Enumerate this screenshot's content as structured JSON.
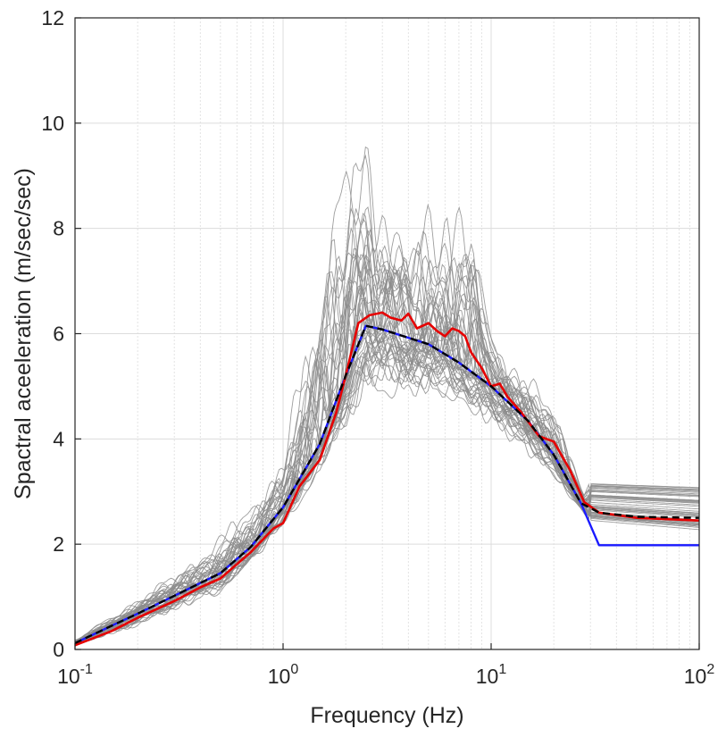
{
  "chart_data": {
    "type": "line",
    "title": "",
    "xlabel": "Frequency (Hz)",
    "ylabel": "Spactral aceeleration (m/sec/sec)",
    "x_scale": "log",
    "xlim": [
      0.1,
      100
    ],
    "ylim": [
      0,
      12
    ],
    "x_ticks": [
      {
        "base": "10",
        "exp": "-1",
        "value": 0.1
      },
      {
        "base": "10",
        "exp": "0",
        "value": 1
      },
      {
        "base": "10",
        "exp": "1",
        "value": 10
      },
      {
        "base": "10",
        "exp": "2",
        "value": 100
      }
    ],
    "y_ticks": [
      "0",
      "2",
      "4",
      "6",
      "8",
      "10",
      "12"
    ],
    "grid": true,
    "colors": {
      "individual": "#8c8c8c",
      "mean": "#e60000",
      "target": "#1a1aff",
      "dashed": "#000000",
      "grid": "#dcdcdc",
      "axis": "#262626"
    },
    "series": [
      {
        "style": "blue-solid",
        "x": [
          0.1,
          0.15,
          0.2,
          0.3,
          0.5,
          0.7,
          1.0,
          1.5,
          2.0,
          2.5,
          3,
          5,
          7,
          10,
          15,
          20,
          27,
          33,
          50,
          100
        ],
        "y": [
          0.12,
          0.45,
          0.68,
          1.02,
          1.45,
          1.95,
          2.7,
          3.9,
          5.2,
          6.15,
          6.08,
          5.8,
          5.45,
          5.0,
          4.35,
          3.7,
          2.78,
          1.98,
          1.98,
          1.98
        ]
      },
      {
        "style": "black-dashed",
        "x": [
          0.1,
          0.15,
          0.2,
          0.3,
          0.5,
          0.7,
          1.0,
          1.5,
          2.0,
          2.5,
          3,
          5,
          7,
          10,
          15,
          20,
          27,
          33,
          50,
          100
        ],
        "y": [
          0.12,
          0.45,
          0.68,
          1.02,
          1.45,
          1.95,
          2.7,
          3.9,
          5.2,
          6.15,
          6.08,
          5.8,
          5.45,
          5.0,
          4.35,
          3.7,
          2.78,
          2.6,
          2.52,
          2.5
        ]
      },
      {
        "style": "red-solid",
        "x": [
          0.1,
          0.15,
          0.2,
          0.3,
          0.4,
          0.5,
          0.7,
          0.9,
          1.0,
          1.2,
          1.5,
          1.8,
          2.0,
          2.3,
          2.6,
          3.0,
          3.3,
          3.7,
          4.0,
          4.4,
          5,
          5.5,
          6,
          6.5,
          7,
          7.5,
          8,
          9,
          10,
          11,
          12,
          14,
          17,
          20,
          24,
          28,
          33,
          50,
          100
        ],
        "y": [
          0.08,
          0.35,
          0.6,
          0.92,
          1.18,
          1.35,
          1.85,
          2.3,
          2.4,
          3.1,
          3.6,
          4.5,
          5.2,
          6.2,
          6.35,
          6.4,
          6.3,
          6.25,
          6.38,
          6.1,
          6.2,
          6.05,
          5.95,
          6.1,
          6.05,
          5.95,
          5.65,
          5.35,
          5.0,
          5.05,
          4.8,
          4.5,
          4.05,
          3.95,
          3.4,
          2.8,
          2.6,
          2.5,
          2.45
        ]
      }
    ],
    "ensemble": {
      "style": "gray-thin",
      "count": 45,
      "envelope_x": [
        0.1,
        0.2,
        0.5,
        1.0,
        2.0,
        2.5,
        3.5,
        5,
        8,
        10,
        20,
        28,
        30,
        100
      ],
      "envelope_upper": [
        0.2,
        1.0,
        2.2,
        3.8,
        10.4,
        10.0,
        8.5,
        8.8,
        8.7,
        6.2,
        4.9,
        3.0,
        3.3,
        3.25
      ],
      "envelope_lower": [
        0.05,
        0.4,
        1.0,
        2.2,
        4.0,
        4.5,
        4.6,
        4.6,
        4.4,
        4.1,
        3.2,
        2.5,
        2.3,
        2.1
      ]
    }
  }
}
